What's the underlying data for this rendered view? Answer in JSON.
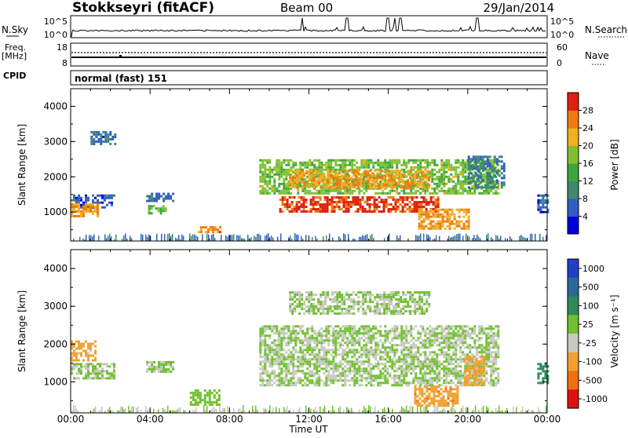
{
  "header": {
    "station": "Stokkseyri (fitACF)",
    "beam": "Beam 00",
    "date": "29/Jan/2014"
  },
  "strip_labels": {
    "nsky": "N.Sky",
    "nsky_top": "10^5",
    "nsky_bottom": "10^0",
    "nsearch": "N.Search",
    "nsearch_top": "10^5",
    "nsearch_bottom": "10^0",
    "freq_line1": "Freq.",
    "freq_line2": "[MHz]",
    "freq_top": "18",
    "freq_bottom": "8",
    "nave": "Nave",
    "nave_top": "60",
    "nave_bottom": "0",
    "cpid": "CPID",
    "cpid_value": "normal (fast) 151"
  },
  "axes": {
    "x_ticks": [
      "00:00",
      "04:00",
      "08:00",
      "12:00",
      "16:00",
      "20:00",
      "00:00"
    ],
    "x_label": "Time UT",
    "y_label": "Slant Range [km]",
    "y_ticks": [
      "1000",
      "2000",
      "3000",
      "4000"
    ]
  },
  "colorbars": {
    "power": {
      "label": "Power [dB]",
      "ticks": [
        "4",
        "8",
        "12",
        "16",
        "20",
        "24",
        "28"
      ],
      "colors": [
        "#0000d8",
        "#2f5fc0",
        "#3d8a6e",
        "#3ca63c",
        "#80c030",
        "#f0b020",
        "#f07a10",
        "#e02010"
      ]
    },
    "velocity": {
      "label": "Velocity [m s⁻¹]",
      "ticks": [
        "1000",
        "500",
        "100",
        "25",
        "-25",
        "-100",
        "-500",
        "-1000"
      ],
      "colors": [
        "#2040c8",
        "#2a6a9a",
        "#2f8a5a",
        "#70c030",
        "#c8c8c0",
        "#f0a030",
        "#f07010",
        "#e01010"
      ]
    }
  },
  "chart_data": [
    {
      "type": "heatmap",
      "title": "Power",
      "xlabel": "Time UT",
      "ylabel": "Slant Range [km]",
      "xlim": [
        0,
        24
      ],
      "ylim": [
        180,
        4500
      ],
      "colorbar_range": [
        0,
        30
      ],
      "colorbar_label": "Power [dB]",
      "grid": false,
      "regions": [
        {
          "t": [
            0.0,
            2.2
          ],
          "r": [
            1100,
            1500
          ],
          "value": 6
        },
        {
          "t": [
            0.0,
            1.4
          ],
          "r": [
            900,
            1250
          ],
          "value": 22
        },
        {
          "t": [
            1.0,
            2.3
          ],
          "r": [
            2950,
            3300
          ],
          "value": 6
        },
        {
          "t": [
            3.8,
            5.2
          ],
          "r": [
            1300,
            1550
          ],
          "value": 7
        },
        {
          "t": [
            3.9,
            4.8
          ],
          "r": [
            950,
            1200
          ],
          "value": 14
        },
        {
          "t": [
            6.4,
            7.5
          ],
          "r": [
            450,
            600
          ],
          "value": 24
        },
        {
          "t": [
            9.5,
            21.5
          ],
          "r": [
            1500,
            2500
          ],
          "value": 16
        },
        {
          "t": [
            11.0,
            18.0
          ],
          "r": [
            1700,
            2200
          ],
          "value": 22
        },
        {
          "t": [
            10.5,
            18.5
          ],
          "r": [
            1000,
            1450
          ],
          "value": 27
        },
        {
          "t": [
            17.5,
            20.0
          ],
          "r": [
            500,
            1100
          ],
          "value": 22
        },
        {
          "t": [
            20.0,
            21.8
          ],
          "r": [
            1700,
            2600
          ],
          "value": 8
        },
        {
          "t": [
            23.5,
            24.0
          ],
          "r": [
            1000,
            1500
          ],
          "value": 6
        }
      ]
    },
    {
      "type": "heatmap",
      "title": "Velocity",
      "xlabel": "Time UT",
      "ylabel": "Slant Range [km]",
      "xlim": [
        0,
        24
      ],
      "ylim": [
        180,
        4500
      ],
      "colorbar_range": [
        -1000,
        1000
      ],
      "colorbar_label": "Velocity [m s⁻¹]",
      "grid": false,
      "regions": [
        {
          "t": [
            0.0,
            2.2
          ],
          "r": [
            1100,
            1500
          ],
          "value": 0
        },
        {
          "t": [
            0.0,
            1.2
          ],
          "r": [
            1600,
            2100
          ],
          "value": -300
        },
        {
          "t": [
            3.8,
            5.2
          ],
          "r": [
            1300,
            1550
          ],
          "value": 0
        },
        {
          "t": [
            6.0,
            7.5
          ],
          "r": [
            400,
            800
          ],
          "value": 80
        },
        {
          "t": [
            9.5,
            21.5
          ],
          "r": [
            900,
            2500
          ],
          "value": 0
        },
        {
          "t": [
            11.0,
            18.0
          ],
          "r": [
            2800,
            3400
          ],
          "value": 0
        },
        {
          "t": [
            17.3,
            19.5
          ],
          "r": [
            400,
            900
          ],
          "value": -450
        },
        {
          "t": [
            19.8,
            20.8
          ],
          "r": [
            900,
            1700
          ],
          "value": -400
        },
        {
          "t": [
            23.5,
            24.0
          ],
          "r": [
            1000,
            1500
          ],
          "value": 300
        }
      ]
    }
  ]
}
